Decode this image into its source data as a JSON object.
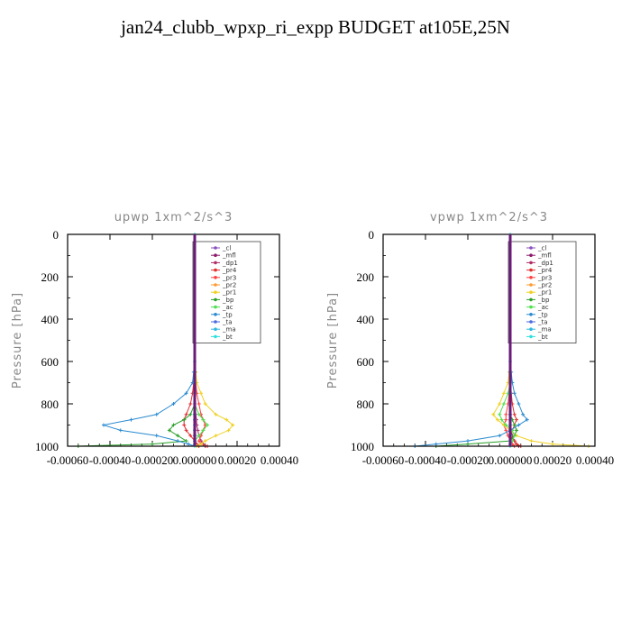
{
  "page": {
    "title": "jan24_clubb_wpxp_ri_expp  BUDGET at105E,25N"
  },
  "chart_data": [
    {
      "type": "line",
      "title": "upwp   1xm^2/s^3",
      "ylabel": "Pressure [hPa]",
      "xlabel": "",
      "xlim": [
        -0.0006,
        0.0004
      ],
      "ylim": [
        1000,
        0
      ],
      "xtick_labels": [
        "-0.00060",
        "-0.00040",
        "-0.00020",
        "0.000000",
        "0.00020",
        "0.00040"
      ],
      "ytick_labels": [
        "0",
        "200",
        "400",
        "600",
        "800",
        "1000"
      ],
      "legend_position": "top-right",
      "y": [
        0,
        100,
        200,
        300,
        400,
        500,
        600,
        650,
        700,
        750,
        800,
        850,
        875,
        900,
        925,
        950,
        975,
        990,
        1000
      ],
      "series": [
        {
          "name": "_cl",
          "color": "#8a4fc0",
          "values": [
            0,
            0,
            0,
            0,
            0,
            0,
            0,
            0,
            0,
            0,
            0,
            0,
            0,
            0,
            0,
            0,
            0,
            0,
            0
          ]
        },
        {
          "name": "_mfl",
          "color": "#8b1a6b",
          "values": [
            0,
            0,
            0,
            0,
            0,
            0,
            0,
            0,
            0,
            0,
            0,
            0,
            0,
            0,
            0,
            0,
            0,
            0,
            0
          ]
        },
        {
          "name": "_dp1",
          "color": "#b0306a",
          "values": [
            0,
            0,
            0,
            0,
            0,
            0,
            0,
            0,
            0,
            0,
            0,
            5e-06,
            8e-06,
            1e-05,
            1.5e-05,
            2e-05,
            3e-05,
            4e-05,
            5e-05
          ]
        },
        {
          "name": "_pr4",
          "color": "#e03030",
          "values": [
            0,
            0,
            0,
            0,
            0,
            0,
            0,
            0,
            -5e-06,
            -1e-05,
            -2e-05,
            -4e-05,
            -5e-05,
            -5e-05,
            -4e-05,
            -2e-05,
            0,
            1e-05,
            2e-05
          ]
        },
        {
          "name": "_pr3",
          "color": "#ff4040",
          "values": [
            0,
            0,
            0,
            0,
            0,
            0,
            0,
            3e-06,
            5e-06,
            1e-05,
            2e-05,
            3e-05,
            4e-05,
            5e-05,
            4e-05,
            3e-05,
            2e-05,
            3e-05,
            6e-05
          ]
        },
        {
          "name": "_pr2",
          "color": "#ff9a30",
          "values": [
            0,
            0,
            0,
            0,
            0,
            0,
            0,
            0,
            0,
            0,
            0,
            0,
            0,
            0,
            0,
            0,
            0,
            0,
            0
          ]
        },
        {
          "name": "_pr1",
          "color": "#f0d020",
          "values": [
            0,
            0,
            0,
            0,
            0,
            0,
            0,
            5e-06,
            1e-05,
            3e-05,
            5e-05,
            0.0001,
            0.00015,
            0.00018,
            0.00016,
            0.0001,
            5e-05,
            3e-05,
            1e-05
          ]
        },
        {
          "name": "_bp",
          "color": "#2aa02a",
          "values": [
            0,
            0,
            0,
            0,
            0,
            0,
            0,
            0,
            0,
            0,
            0,
            -2e-05,
            -5e-05,
            -0.0001,
            -0.00012,
            -8e-05,
            -4e-05,
            -0.0002,
            -0.00055
          ]
        },
        {
          "name": "_ac",
          "color": "#50e050",
          "values": [
            0,
            0,
            0,
            0,
            0,
            0,
            0,
            0,
            0,
            0,
            0,
            2e-05,
            4e-05,
            6e-05,
            4e-05,
            2e-05,
            0,
            0,
            0
          ]
        },
        {
          "name": "_tp",
          "color": "#2a8ad0",
          "values": [
            0,
            0,
            0,
            0,
            0,
            0,
            0,
            -5e-06,
            -1e-05,
            -4e-05,
            -0.0001,
            -0.00018,
            -0.0003,
            -0.00043,
            -0.00035,
            -0.00018,
            -8e-05,
            -3e-05,
            0
          ]
        },
        {
          "name": "_ta",
          "color": "#4a6ae0",
          "values": [
            0,
            0,
            0,
            0,
            0,
            0,
            0,
            0,
            0,
            0,
            0,
            0,
            0,
            0,
            0,
            0,
            0,
            0,
            0
          ]
        },
        {
          "name": "_ma",
          "color": "#30b8e0",
          "values": [
            0,
            0,
            0,
            0,
            0,
            0,
            0,
            0,
            0,
            0,
            0,
            0,
            0,
            0,
            0,
            0,
            0,
            0,
            0
          ]
        },
        {
          "name": "_bt",
          "color": "#30e0e0",
          "values": [
            0,
            0,
            0,
            0,
            0,
            0,
            0,
            0,
            0,
            0,
            0,
            0,
            0,
            0,
            0,
            0,
            0,
            0,
            0
          ]
        }
      ]
    },
    {
      "type": "line",
      "title": "vpwp   1xm^2/s^3",
      "ylabel": "Pressure [hPa]",
      "xlabel": "",
      "xlim": [
        -0.0006,
        0.0004
      ],
      "ylim": [
        1000,
        0
      ],
      "xtick_labels": [
        "-0.00060",
        "-0.00040",
        "-0.00020",
        "0.000000",
        "0.00020",
        "0.00040"
      ],
      "ytick_labels": [
        "0",
        "200",
        "400",
        "600",
        "800",
        "1000"
      ],
      "legend_position": "top-right",
      "y": [
        0,
        100,
        200,
        300,
        400,
        500,
        600,
        650,
        700,
        750,
        800,
        850,
        875,
        900,
        925,
        950,
        975,
        990,
        1000
      ],
      "series": [
        {
          "name": "_cl",
          "color": "#8a4fc0",
          "values": [
            0,
            0,
            0,
            0,
            0,
            0,
            0,
            0,
            0,
            0,
            0,
            0,
            0,
            0,
            0,
            0,
            0,
            0,
            0
          ]
        },
        {
          "name": "_mfl",
          "color": "#8b1a6b",
          "values": [
            0,
            0,
            0,
            0,
            0,
            0,
            0,
            0,
            0,
            0,
            0,
            0,
            0,
            0,
            0,
            0,
            0,
            0,
            0
          ]
        },
        {
          "name": "_dp1",
          "color": "#b0306a",
          "values": [
            0,
            0,
            0,
            0,
            0,
            0,
            0,
            0,
            0,
            0,
            0,
            0,
            0,
            0,
            5e-06,
            1e-05,
            2e-05,
            3e-05,
            4e-05
          ]
        },
        {
          "name": "_pr4",
          "color": "#e03030",
          "values": [
            0,
            0,
            0,
            0,
            0,
            0,
            0,
            0,
            0,
            5e-06,
            1e-05,
            2e-05,
            3e-05,
            2e-05,
            1e-05,
            0,
            2e-05,
            3e-05,
            5e-05
          ]
        },
        {
          "name": "_pr3",
          "color": "#ff4040",
          "values": [
            0,
            0,
            0,
            0,
            0,
            0,
            0,
            0,
            0,
            -5e-06,
            -1e-05,
            -2e-05,
            -2e-05,
            -3e-05,
            -2e-05,
            -1e-05,
            0,
            1e-05,
            2e-05
          ]
        },
        {
          "name": "_pr2",
          "color": "#ff9a30",
          "values": [
            0,
            0,
            0,
            0,
            0,
            0,
            0,
            0,
            0,
            0,
            0,
            0,
            0,
            0,
            0,
            0,
            0,
            0,
            0
          ]
        },
        {
          "name": "_pr1",
          "color": "#f0d020",
          "values": [
            0,
            0,
            0,
            0,
            0,
            0,
            0,
            -5e-06,
            -1e-05,
            -3e-05,
            -5e-05,
            -8e-05,
            -6e-05,
            -3e-05,
            0,
            3e-05,
            0.0001,
            0.0002,
            0.00037
          ]
        },
        {
          "name": "_bp",
          "color": "#2aa02a",
          "values": [
            0,
            0,
            0,
            0,
            0,
            0,
            0,
            0,
            0,
            0,
            0,
            0,
            1e-05,
            2e-05,
            3e-05,
            2e-05,
            0,
            -0.0002,
            -0.00035
          ]
        },
        {
          "name": "_ac",
          "color": "#50e050",
          "values": [
            0,
            0,
            0,
            0,
            0,
            0,
            0,
            0,
            0,
            -1e-05,
            -3e-05,
            -5e-05,
            -4e-05,
            -2e-05,
            1e-05,
            2e-05,
            1e-05,
            0,
            0
          ]
        },
        {
          "name": "_tp",
          "color": "#2a8ad0",
          "values": [
            0,
            0,
            0,
            0,
            0,
            0,
            0,
            5e-06,
            1e-05,
            2e-05,
            4e-05,
            6e-05,
            8e-05,
            4e-05,
            0,
            -5e-05,
            -0.0002,
            -0.00035,
            -0.00045
          ]
        },
        {
          "name": "_ta",
          "color": "#4a6ae0",
          "values": [
            0,
            0,
            0,
            0,
            0,
            0,
            0,
            0,
            0,
            0,
            0,
            0,
            0,
            0,
            0,
            0,
            0,
            0,
            0
          ]
        },
        {
          "name": "_ma",
          "color": "#30b8e0",
          "values": [
            0,
            0,
            0,
            0,
            0,
            0,
            0,
            0,
            0,
            0,
            0,
            0,
            0,
            0,
            0,
            0,
            0,
            0,
            0
          ]
        },
        {
          "name": "_bt",
          "color": "#30e0e0",
          "values": [
            0,
            0,
            0,
            0,
            0,
            0,
            0,
            0,
            0,
            0,
            0,
            0,
            0,
            0,
            0,
            0,
            0,
            0,
            0
          ]
        }
      ]
    }
  ]
}
